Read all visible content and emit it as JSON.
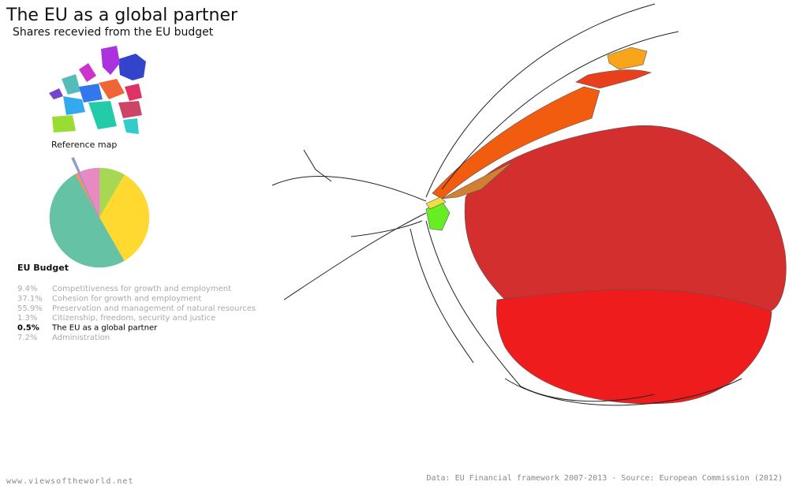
{
  "title": "The EU as a global partner",
  "subtitle": "Shares recevied from the EU budget",
  "reference_map": "Reference map",
  "website": "www.viewsoftheworld.net",
  "source": "Data: EU Financial framework 2007-2013 - Source: European Commission (2012)",
  "chart_data": {
    "type": "pie",
    "title": "EU Budget",
    "categories": [
      "Competitiveness for growth and employment",
      "Cohesion for growth and employment",
      "Preservation and management of natural resources",
      "Citizenship, freedom, security and justice",
      "The EU as a global partner",
      "Administration"
    ],
    "values": [
      9.4,
      37.1,
      55.9,
      1.3,
      0.5,
      7.2
    ],
    "value_labels": [
      "9.4%",
      "37.1%",
      "55.9%",
      "1.3%",
      "0.5%",
      "7.2%"
    ],
    "colors": [
      "#a6d854",
      "#ffd92f",
      "#66c2a5",
      "#fc8d62",
      "#8da0cb",
      "#e78ac3"
    ],
    "highlight": 4
  }
}
